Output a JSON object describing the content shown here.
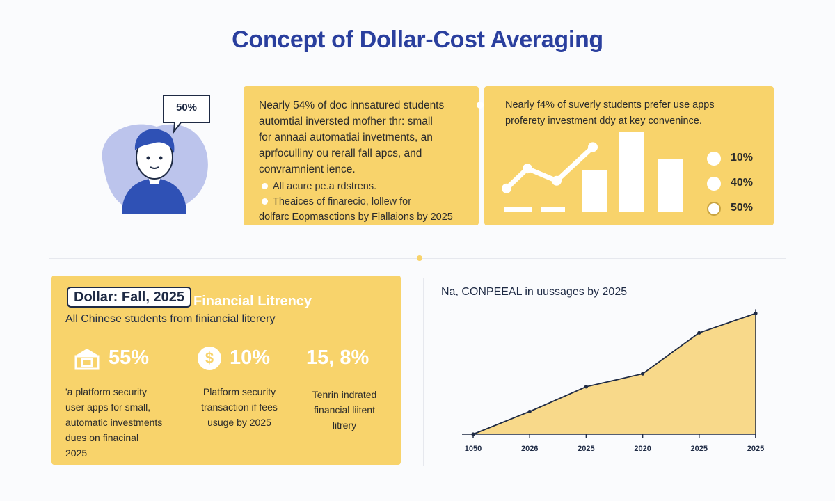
{
  "title": "Concept of Dollar-Cost Averaging",
  "speech_bubble": "50%",
  "panel1": {
    "lines": [
      "Nearly 54% of doc innsatured students",
      "automtial inversted mofher thr: small",
      "for annaai automatiai invetments, an",
      "aprfoculliny ou rerall fall apcs, and",
      "convramnient ience."
    ],
    "bullets": [
      "All acure pe.a rdstrens.",
      "Theaices of finarecio, lollew for"
    ],
    "footer": "dolfarc Eopmasctions by Flallaions by 2025"
  },
  "panel2": {
    "lines": [
      "Nearly f4% of suverly students prefer use apps",
      "proferety investment ddy at key convenince."
    ],
    "legend": [
      {
        "value": "10%",
        "icon": "circle-icon"
      },
      {
        "value": "40%",
        "icon": "circle-icon"
      },
      {
        "value": "50%",
        "icon": "coin-icon"
      }
    ],
    "mini_chart": {
      "line_points": [
        0.12,
        0.38,
        0.22,
        0.66
      ],
      "bars": [
        0.52,
        1.0,
        0.66
      ]
    }
  },
  "panel3": {
    "tag": "Dollar: Fall, 2025",
    "tag_sub": "Financial Litrency",
    "subtitle": "All Chinese students from finiancial literery",
    "stats": [
      {
        "icon": "bank-icon",
        "value": "55%",
        "lines": [
          "'a platform security",
          "user apps for small,",
          "automatic investments",
          "dues on finacinal",
          "2025"
        ]
      },
      {
        "icon": "dollar-coin-icon",
        "value": "10%",
        "lines": [
          "Platform security",
          "transaction if fees",
          "usuge by 2025"
        ]
      },
      {
        "icon": "",
        "value": "15, 8%",
        "lines": [
          "Tenrin indrated",
          "financial liitent",
          "litrery"
        ]
      }
    ]
  },
  "chart_data": {
    "type": "area",
    "title": "Na, CONPEEAL in uussages by 2025",
    "x": [
      "1050",
      "2026",
      "2025",
      "2020",
      "2025",
      "2025"
    ],
    "values": [
      0,
      10.5,
      22,
      28,
      47,
      56
    ],
    "ylim": [
      0,
      60
    ],
    "xlabel": "",
    "ylabel": "",
    "grid": false,
    "color": "#f8d98a",
    "line_color": "#1e2a44"
  },
  "colors": {
    "accent": "#2a3f9e",
    "panel": "#f8d36b",
    "avatar_blob": "#bcc4ec",
    "avatar_shirt": "#2f51b5"
  }
}
